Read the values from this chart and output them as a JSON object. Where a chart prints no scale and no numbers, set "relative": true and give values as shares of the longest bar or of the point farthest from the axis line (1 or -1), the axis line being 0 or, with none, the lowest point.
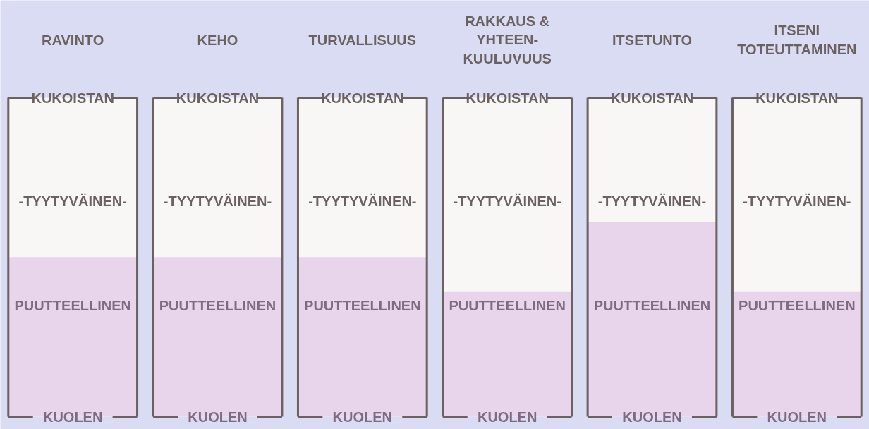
{
  "chart_data": {
    "type": "bar",
    "categories": [
      "RAVINTO",
      "KEHO",
      "TURVALLISUUS",
      "RAKKAUS &\nYHTEEN-\nKUULUVUUS",
      "ITSETUNTO",
      "ITSENI\nTOTEUTTAMINEN"
    ],
    "values": [
      0.82,
      0.82,
      0.82,
      0.64,
      1,
      0.64
    ],
    "relative": true,
    "color": "#e8d5ec",
    "annotations": [
      "KUOLEN",
      "PUUTTEELLINEN",
      "-TYYTYVÄINEN-",
      "KUKOISTAN"
    ]
  }
}
